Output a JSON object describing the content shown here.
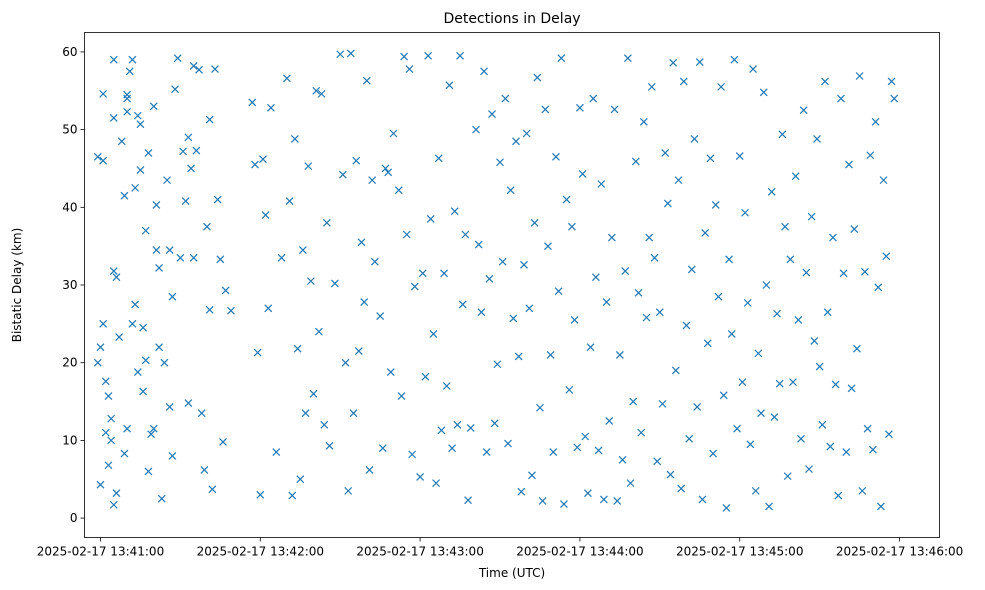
{
  "chart_data": {
    "type": "scatter",
    "title": "Detections in Delay",
    "xlabel": "Time (UTC)",
    "ylabel": "Bistatic Delay (km)",
    "x_units": "seconds after 2025-02-17 13:41:00 UTC",
    "xlim": [
      -6,
      315
    ],
    "ylim": [
      -2.5,
      62.5
    ],
    "xticks": [
      0,
      60,
      120,
      180,
      240,
      300
    ],
    "xtick_labels": [
      "2025-02-17 13:41:00",
      "2025-02-17 13:42:00",
      "2025-02-17 13:43:00",
      "2025-02-17 13:44:00",
      "2025-02-17 13:45:00",
      "2025-02-17 13:46:00"
    ],
    "yticks": [
      0,
      10,
      20,
      30,
      40,
      50,
      60
    ],
    "ytick_labels": [
      "0",
      "10",
      "20",
      "30",
      "40",
      "50",
      "60"
    ],
    "grid": false,
    "marker": "x",
    "color": "#1f77b4",
    "points": [
      [
        -1,
        20
      ],
      [
        -1,
        46.5
      ],
      [
        0,
        4.3
      ],
      [
        0,
        22
      ],
      [
        1,
        25
      ],
      [
        1,
        54.6
      ],
      [
        1,
        46
      ],
      [
        2,
        17.6
      ],
      [
        2,
        11
      ],
      [
        3,
        15.7
      ],
      [
        3,
        6.8
      ],
      [
        4,
        10
      ],
      [
        4,
        12.8
      ],
      [
        5,
        59
      ],
      [
        5,
        31.8
      ],
      [
        5,
        51.5
      ],
      [
        5,
        1.7
      ],
      [
        6,
        31
      ],
      [
        6,
        3.2
      ],
      [
        7,
        23.3
      ],
      [
        8,
        48.5
      ],
      [
        9,
        41.5
      ],
      [
        9,
        8.3
      ],
      [
        10,
        54
      ],
      [
        10,
        54.5
      ],
      [
        10,
        11.5
      ],
      [
        10,
        52.3
      ],
      [
        11,
        57.5
      ],
      [
        12,
        59
      ],
      [
        12,
        25
      ],
      [
        13,
        27.5
      ],
      [
        13,
        42.5
      ],
      [
        14,
        18.8
      ],
      [
        14,
        51.8
      ],
      [
        15,
        50.7
      ],
      [
        15,
        44.8
      ],
      [
        16,
        16.3
      ],
      [
        16,
        24.5
      ],
      [
        17,
        20.3
      ],
      [
        17,
        37
      ],
      [
        18,
        47
      ],
      [
        18,
        6
      ],
      [
        19,
        10.8
      ],
      [
        20,
        53
      ],
      [
        20,
        11.5
      ],
      [
        21,
        34.5
      ],
      [
        21,
        40.3
      ],
      [
        22,
        32.2
      ],
      [
        22,
        22
      ],
      [
        23,
        2.5
      ],
      [
        24,
        20
      ],
      [
        25,
        43.5
      ],
      [
        26,
        34.5
      ],
      [
        26,
        14.3
      ],
      [
        27,
        8
      ],
      [
        27,
        28.5
      ],
      [
        28,
        55.2
      ],
      [
        29,
        59.2
      ],
      [
        30,
        33.5
      ],
      [
        31,
        47.2
      ],
      [
        32,
        40.8
      ],
      [
        33,
        49
      ],
      [
        33,
        14.8
      ],
      [
        34,
        45
      ],
      [
        35,
        33.5
      ],
      [
        35,
        58.2
      ],
      [
        36,
        47.3
      ],
      [
        37,
        57.7
      ],
      [
        38,
        13.5
      ],
      [
        39,
        6.2
      ],
      [
        40,
        37.5
      ],
      [
        41,
        51.3
      ],
      [
        41,
        26.8
      ],
      [
        42,
        3.7
      ],
      [
        43,
        57.8
      ],
      [
        44,
        41
      ],
      [
        45,
        33.3
      ],
      [
        46,
        9.8
      ],
      [
        47,
        29.3
      ],
      [
        49,
        26.7
      ],
      [
        57,
        53.5
      ],
      [
        58,
        45.5
      ],
      [
        59,
        21.3
      ],
      [
        60,
        3
      ],
      [
        61,
        46.2
      ],
      [
        62,
        39
      ],
      [
        63,
        27
      ],
      [
        64,
        52.8
      ],
      [
        66,
        8.5
      ],
      [
        68,
        33.5
      ],
      [
        70,
        56.6
      ],
      [
        71,
        40.8
      ],
      [
        72,
        2.9
      ],
      [
        73,
        48.8
      ],
      [
        74,
        21.8
      ],
      [
        75,
        5
      ],
      [
        76,
        34.5
      ],
      [
        77,
        13.5
      ],
      [
        78,
        45.3
      ],
      [
        79,
        30.5
      ],
      [
        80,
        16
      ],
      [
        81,
        55
      ],
      [
        82,
        24
      ],
      [
        83,
        54.6
      ],
      [
        84,
        12
      ],
      [
        85,
        38
      ],
      [
        86,
        9.3
      ],
      [
        88,
        30.2
      ],
      [
        90,
        59.7
      ],
      [
        91,
        44.2
      ],
      [
        92,
        20
      ],
      [
        93,
        3.5
      ],
      [
        94,
        59.8
      ],
      [
        95,
        13.5
      ],
      [
        96,
        46
      ],
      [
        97,
        21.5
      ],
      [
        98,
        35.5
      ],
      [
        99,
        27.8
      ],
      [
        100,
        56.3
      ],
      [
        101,
        6.2
      ],
      [
        102,
        43.5
      ],
      [
        103,
        33
      ],
      [
        105,
        26
      ],
      [
        106,
        9
      ],
      [
        107,
        45
      ],
      [
        108,
        44.5
      ],
      [
        109,
        18.8
      ],
      [
        110,
        49.5
      ],
      [
        112,
        42.2
      ],
      [
        113,
        15.7
      ],
      [
        114,
        59.4
      ],
      [
        115,
        36.5
      ],
      [
        116,
        57.8
      ],
      [
        117,
        8.2
      ],
      [
        118,
        29.8
      ],
      [
        120,
        5.3
      ],
      [
        121,
        31.5
      ],
      [
        122,
        18.2
      ],
      [
        123,
        59.5
      ],
      [
        124,
        38.5
      ],
      [
        125,
        23.7
      ],
      [
        126,
        4.5
      ],
      [
        127,
        46.3
      ],
      [
        128,
        11.3
      ],
      [
        129,
        31.5
      ],
      [
        130,
        17
      ],
      [
        131,
        55.7
      ],
      [
        132,
        9
      ],
      [
        133,
        39.5
      ],
      [
        134,
        12
      ],
      [
        135,
        59.5
      ],
      [
        136,
        27.5
      ],
      [
        137,
        36.5
      ],
      [
        138,
        2.3
      ],
      [
        139,
        11.6
      ],
      [
        141,
        50
      ],
      [
        142,
        35.2
      ],
      [
        143,
        26.5
      ],
      [
        144,
        57.5
      ],
      [
        145,
        8.5
      ],
      [
        146,
        30.8
      ],
      [
        147,
        52
      ],
      [
        148,
        12.2
      ],
      [
        149,
        19.8
      ],
      [
        150,
        45.8
      ],
      [
        151,
        33
      ],
      [
        152,
        54
      ],
      [
        153,
        9.6
      ],
      [
        154,
        42.2
      ],
      [
        155,
        25.7
      ],
      [
        156,
        48.5
      ],
      [
        157,
        20.8
      ],
      [
        158,
        3.4
      ],
      [
        159,
        32.6
      ],
      [
        160,
        49.5
      ],
      [
        161,
        27
      ],
      [
        162,
        5.5
      ],
      [
        163,
        38
      ],
      [
        164,
        56.7
      ],
      [
        165,
        14.2
      ],
      [
        166,
        2.2
      ],
      [
        167,
        52.6
      ],
      [
        168,
        35
      ],
      [
        169,
        21
      ],
      [
        170,
        8.5
      ],
      [
        171,
        46.5
      ],
      [
        172,
        29.2
      ],
      [
        173,
        59.2
      ],
      [
        174,
        1.8
      ],
      [
        175,
        41
      ],
      [
        176,
        16.5
      ],
      [
        177,
        37.5
      ],
      [
        178,
        25.5
      ],
      [
        179,
        9.1
      ],
      [
        180,
        52.8
      ],
      [
        181,
        44.3
      ],
      [
        182,
        10.5
      ],
      [
        183,
        3.2
      ],
      [
        184,
        22
      ],
      [
        185,
        54
      ],
      [
        186,
        31
      ],
      [
        187,
        8.7
      ],
      [
        188,
        43
      ],
      [
        189,
        2.4
      ],
      [
        190,
        27.8
      ],
      [
        191,
        12.5
      ],
      [
        192,
        36.1
      ],
      [
        193,
        52.6
      ],
      [
        194,
        2.2
      ],
      [
        195,
        21
      ],
      [
        196,
        7.5
      ],
      [
        197,
        31.8
      ],
      [
        198,
        59.2
      ],
      [
        199,
        4.5
      ],
      [
        200,
        15
      ],
      [
        201,
        45.9
      ],
      [
        202,
        29
      ],
      [
        203,
        11
      ],
      [
        204,
        51
      ],
      [
        205,
        25.8
      ],
      [
        206,
        36.1
      ],
      [
        207,
        55.5
      ],
      [
        208,
        33.5
      ],
      [
        209,
        7.3
      ],
      [
        210,
        26.5
      ],
      [
        211,
        14.7
      ],
      [
        212,
        47
      ],
      [
        213,
        40.5
      ],
      [
        214,
        5.6
      ],
      [
        215,
        58.6
      ],
      [
        216,
        19
      ],
      [
        217,
        43.5
      ],
      [
        218,
        3.8
      ],
      [
        219,
        56.2
      ],
      [
        220,
        24.8
      ],
      [
        221,
        10.2
      ],
      [
        222,
        32
      ],
      [
        223,
        48.8
      ],
      [
        224,
        14.3
      ],
      [
        225,
        58.7
      ],
      [
        226,
        2.4
      ],
      [
        227,
        36.7
      ],
      [
        228,
        22.5
      ],
      [
        229,
        46.3
      ],
      [
        230,
        8.3
      ],
      [
        231,
        40.3
      ],
      [
        232,
        28.5
      ],
      [
        233,
        55.5
      ],
      [
        234,
        15.8
      ],
      [
        235,
        1.3
      ],
      [
        236,
        33.3
      ],
      [
        237,
        23.7
      ],
      [
        238,
        59
      ],
      [
        239,
        11.5
      ],
      [
        240,
        46.6
      ],
      [
        241,
        17.5
      ],
      [
        242,
        39.3
      ],
      [
        243,
        27.7
      ],
      [
        244,
        9.5
      ],
      [
        245,
        57.8
      ],
      [
        246,
        3.5
      ],
      [
        247,
        21.2
      ],
      [
        248,
        13.5
      ],
      [
        249,
        54.8
      ],
      [
        250,
        30
      ],
      [
        251,
        1.5
      ],
      [
        252,
        42
      ],
      [
        253,
        13
      ],
      [
        254,
        26.3
      ],
      [
        255,
        17.3
      ],
      [
        256,
        49.4
      ],
      [
        257,
        37.5
      ],
      [
        258,
        5.4
      ],
      [
        259,
        33.3
      ],
      [
        260,
        17.5
      ],
      [
        261,
        44
      ],
      [
        262,
        25.5
      ],
      [
        263,
        10.2
      ],
      [
        264,
        52.5
      ],
      [
        265,
        31.6
      ],
      [
        266,
        6.3
      ],
      [
        267,
        38.8
      ],
      [
        268,
        22.8
      ],
      [
        269,
        48.8
      ],
      [
        270,
        19.5
      ],
      [
        271,
        12
      ],
      [
        272,
        56.2
      ],
      [
        273,
        26.5
      ],
      [
        274,
        9.2
      ],
      [
        275,
        36.1
      ],
      [
        276,
        17.2
      ],
      [
        277,
        2.9
      ],
      [
        278,
        54
      ],
      [
        279,
        31.5
      ],
      [
        280,
        8.5
      ],
      [
        281,
        45.5
      ],
      [
        282,
        16.7
      ],
      [
        283,
        37.2
      ],
      [
        284,
        21.8
      ],
      [
        285,
        56.9
      ],
      [
        286,
        3.5
      ],
      [
        287,
        31.7
      ],
      [
        288,
        11.5
      ],
      [
        289,
        46.7
      ],
      [
        290,
        8.8
      ],
      [
        291,
        51
      ],
      [
        292,
        29.7
      ],
      [
        293,
        1.5
      ],
      [
        294,
        43.5
      ],
      [
        295,
        33.7
      ],
      [
        296,
        10.8
      ],
      [
        297,
        56.2
      ],
      [
        298,
        54
      ]
    ]
  }
}
